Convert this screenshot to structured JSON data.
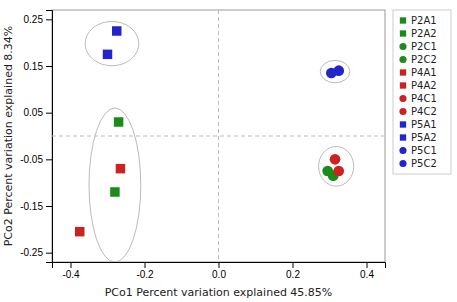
{
  "chart_data": {
    "type": "scatter",
    "xlabel": "PCo1 Percent variation explained 45.85%",
    "ylabel": "PCo2 Percent variation explained 8.34%",
    "xlim": [
      -0.45,
      0.45
    ],
    "ylim": [
      -0.27,
      0.27
    ],
    "xticks": [
      -0.4,
      -0.2,
      {
        "value": 0.0,
        "label": "0.0"
      },
      0.2,
      0.4
    ],
    "yticks": [
      -0.25,
      -0.15,
      -0.05,
      0.05,
      0.15,
      0.25
    ],
    "legend": "right",
    "hlines": [
      0
    ],
    "vlines": [
      0
    ],
    "series": [
      {
        "name": "P2A1",
        "color": "#1a8c1a",
        "marker": "square",
        "x": [
          -0.27
        ],
        "values": [
          0.03
        ]
      },
      {
        "name": "P2A2",
        "color": "#1a8c1a",
        "marker": "square",
        "x": [
          -0.28
        ],
        "values": [
          -0.12
        ]
      },
      {
        "name": "P2C1",
        "color": "#1a8c1a",
        "marker": "circle",
        "x": [
          0.295
        ],
        "values": [
          -0.075
        ]
      },
      {
        "name": "P2C2",
        "color": "#1a8c1a",
        "marker": "circle",
        "x": [
          0.31
        ],
        "values": [
          -0.085
        ]
      },
      {
        "name": "P4A1",
        "color": "#cc2222",
        "marker": "square",
        "x": [
          -0.375
        ],
        "values": [
          -0.205
        ]
      },
      {
        "name": "P4A2",
        "color": "#cc2222",
        "marker": "square",
        "x": [
          -0.265
        ],
        "values": [
          -0.07
        ]
      },
      {
        "name": "P4C1",
        "color": "#cc2222",
        "marker": "circle",
        "x": [
          0.315
        ],
        "values": [
          -0.05
        ]
      },
      {
        "name": "P4C2",
        "color": "#cc2222",
        "marker": "circle",
        "x": [
          0.325
        ],
        "values": [
          -0.075
        ]
      },
      {
        "name": "P5A1",
        "color": "#2424cc",
        "marker": "square",
        "x": [
          -0.3
        ],
        "values": [
          0.175
        ]
      },
      {
        "name": "P5A2",
        "color": "#2424cc",
        "marker": "square",
        "x": [
          -0.275
        ],
        "values": [
          0.225
        ]
      },
      {
        "name": "P5C1",
        "color": "#2424cc",
        "marker": "circle",
        "x": [
          0.305
        ],
        "values": [
          0.135
        ]
      },
      {
        "name": "P5C2",
        "color": "#2424cc",
        "marker": "circle",
        "x": [
          0.325
        ],
        "values": [
          0.14
        ]
      }
    ],
    "ellipses": [
      {
        "cx": -0.288,
        "cy": 0.198,
        "width": 0.145,
        "height": 0.095,
        "angle": 0
      },
      {
        "cx": -0.28,
        "cy": -0.105,
        "width": 0.14,
        "height": 0.33,
        "angle": 0
      },
      {
        "cx": 0.315,
        "cy": 0.138,
        "width": 0.08,
        "height": 0.048,
        "angle": 0
      },
      {
        "cx": 0.318,
        "cy": -0.065,
        "width": 0.095,
        "height": 0.085,
        "angle": 0
      }
    ]
  }
}
